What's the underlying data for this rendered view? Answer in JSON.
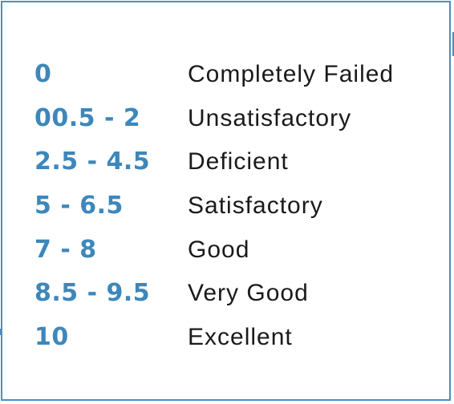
{
  "grades": [
    {
      "score": "0",
      "label": "Completely Failed"
    },
    {
      "score": "00.5 - 2",
      "label": "Unsatisfactory"
    },
    {
      "score": "2.5 - 4.5",
      "label": "Deficient"
    },
    {
      "score": "5 - 6.5",
      "label": "Satisfactory"
    },
    {
      "score": "7 - 8",
      "label": "Good"
    },
    {
      "score": "8.5 - 9.5",
      "label": "Very Good"
    },
    {
      "score": "10",
      "label": "Excellent"
    }
  ],
  "colors": {
    "accent": "#3d87bb",
    "border": "#4a8fbf",
    "text": "#1a1a1a"
  }
}
